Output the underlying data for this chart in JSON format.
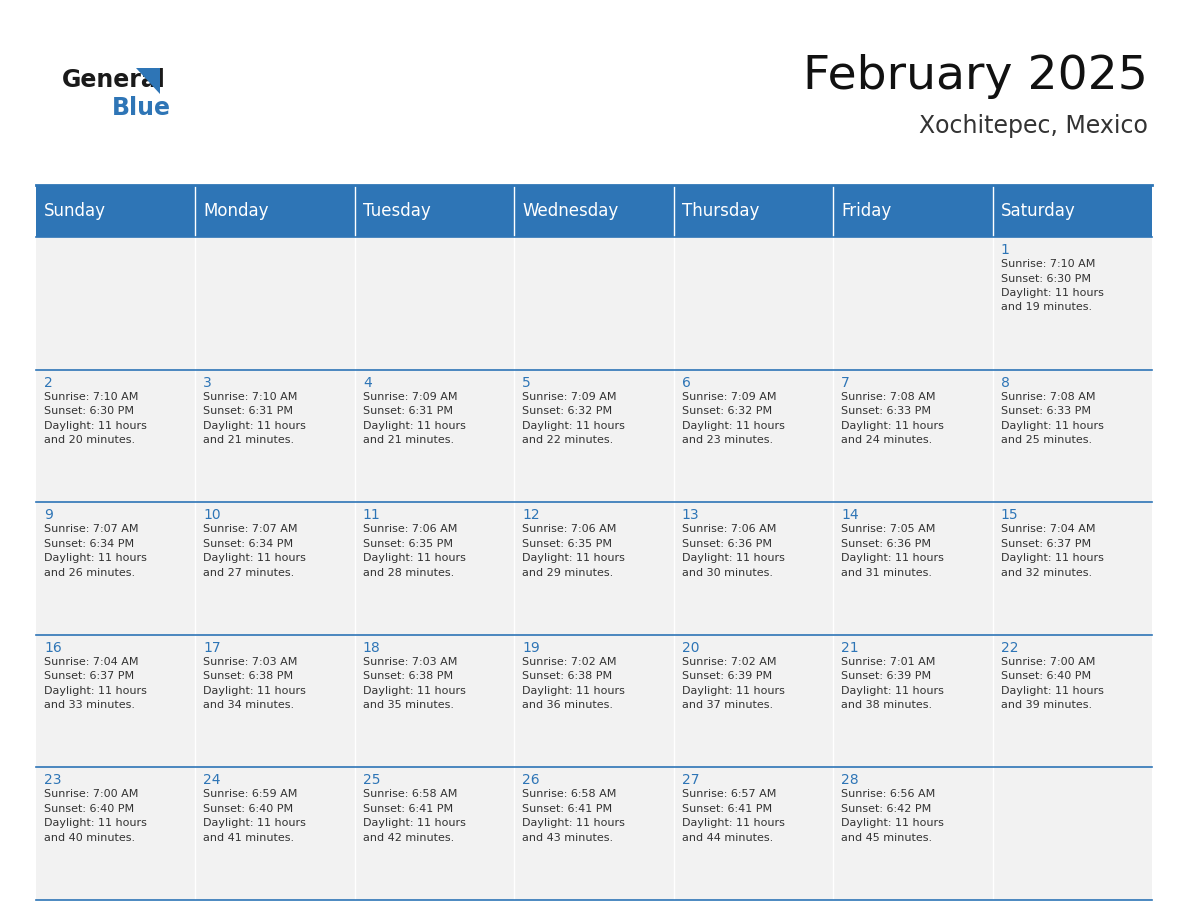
{
  "title": "February 2025",
  "subtitle": "Xochitepec, Mexico",
  "header_bg": "#2E75B6",
  "header_text_color": "#FFFFFF",
  "cell_bg": "#F2F2F2",
  "day_number_color": "#2E75B6",
  "text_color": "#333333",
  "border_color": "#2E75B6",
  "days_of_week": [
    "Sunday",
    "Monday",
    "Tuesday",
    "Wednesday",
    "Thursday",
    "Friday",
    "Saturday"
  ],
  "weeks": [
    [
      {
        "day": null,
        "sunrise": null,
        "sunset": null,
        "daylight_min": null
      },
      {
        "day": null,
        "sunrise": null,
        "sunset": null,
        "daylight_min": null
      },
      {
        "day": null,
        "sunrise": null,
        "sunset": null,
        "daylight_min": null
      },
      {
        "day": null,
        "sunrise": null,
        "sunset": null,
        "daylight_min": null
      },
      {
        "day": null,
        "sunrise": null,
        "sunset": null,
        "daylight_min": null
      },
      {
        "day": null,
        "sunrise": null,
        "sunset": null,
        "daylight_min": null
      },
      {
        "day": 1,
        "sunrise": "7:10 AM",
        "sunset": "6:30 PM",
        "daylight_min": 19
      }
    ],
    [
      {
        "day": 2,
        "sunrise": "7:10 AM",
        "sunset": "6:30 PM",
        "daylight_min": 20
      },
      {
        "day": 3,
        "sunrise": "7:10 AM",
        "sunset": "6:31 PM",
        "daylight_min": 21
      },
      {
        "day": 4,
        "sunrise": "7:09 AM",
        "sunset": "6:31 PM",
        "daylight_min": 21
      },
      {
        "day": 5,
        "sunrise": "7:09 AM",
        "sunset": "6:32 PM",
        "daylight_min": 22
      },
      {
        "day": 6,
        "sunrise": "7:09 AM",
        "sunset": "6:32 PM",
        "daylight_min": 23
      },
      {
        "day": 7,
        "sunrise": "7:08 AM",
        "sunset": "6:33 PM",
        "daylight_min": 24
      },
      {
        "day": 8,
        "sunrise": "7:08 AM",
        "sunset": "6:33 PM",
        "daylight_min": 25
      }
    ],
    [
      {
        "day": 9,
        "sunrise": "7:07 AM",
        "sunset": "6:34 PM",
        "daylight_min": 26
      },
      {
        "day": 10,
        "sunrise": "7:07 AM",
        "sunset": "6:34 PM",
        "daylight_min": 27
      },
      {
        "day": 11,
        "sunrise": "7:06 AM",
        "sunset": "6:35 PM",
        "daylight_min": 28
      },
      {
        "day": 12,
        "sunrise": "7:06 AM",
        "sunset": "6:35 PM",
        "daylight_min": 29
      },
      {
        "day": 13,
        "sunrise": "7:06 AM",
        "sunset": "6:36 PM",
        "daylight_min": 30
      },
      {
        "day": 14,
        "sunrise": "7:05 AM",
        "sunset": "6:36 PM",
        "daylight_min": 31
      },
      {
        "day": 15,
        "sunrise": "7:04 AM",
        "sunset": "6:37 PM",
        "daylight_min": 32
      }
    ],
    [
      {
        "day": 16,
        "sunrise": "7:04 AM",
        "sunset": "6:37 PM",
        "daylight_min": 33
      },
      {
        "day": 17,
        "sunrise": "7:03 AM",
        "sunset": "6:38 PM",
        "daylight_min": 34
      },
      {
        "day": 18,
        "sunrise": "7:03 AM",
        "sunset": "6:38 PM",
        "daylight_min": 35
      },
      {
        "day": 19,
        "sunrise": "7:02 AM",
        "sunset": "6:38 PM",
        "daylight_min": 36
      },
      {
        "day": 20,
        "sunrise": "7:02 AM",
        "sunset": "6:39 PM",
        "daylight_min": 37
      },
      {
        "day": 21,
        "sunrise": "7:01 AM",
        "sunset": "6:39 PM",
        "daylight_min": 38
      },
      {
        "day": 22,
        "sunrise": "7:00 AM",
        "sunset": "6:40 PM",
        "daylight_min": 39
      }
    ],
    [
      {
        "day": 23,
        "sunrise": "7:00 AM",
        "sunset": "6:40 PM",
        "daylight_min": 40
      },
      {
        "day": 24,
        "sunrise": "6:59 AM",
        "sunset": "6:40 PM",
        "daylight_min": 41
      },
      {
        "day": 25,
        "sunrise": "6:58 AM",
        "sunset": "6:41 PM",
        "daylight_min": 42
      },
      {
        "day": 26,
        "sunrise": "6:58 AM",
        "sunset": "6:41 PM",
        "daylight_min": 43
      },
      {
        "day": 27,
        "sunrise": "6:57 AM",
        "sunset": "6:41 PM",
        "daylight_min": 44
      },
      {
        "day": 28,
        "sunrise": "6:56 AM",
        "sunset": "6:42 PM",
        "daylight_min": 45
      },
      {
        "day": null,
        "sunrise": null,
        "sunset": null,
        "daylight_min": null
      }
    ]
  ],
  "title_fontsize": 34,
  "subtitle_fontsize": 17,
  "header_fontsize": 12,
  "day_num_fontsize": 10,
  "cell_text_fontsize": 8,
  "logo_general_color": "#1a1a1a",
  "logo_blue_color": "#2E75B6",
  "logo_triangle_color": "#2E75B6"
}
